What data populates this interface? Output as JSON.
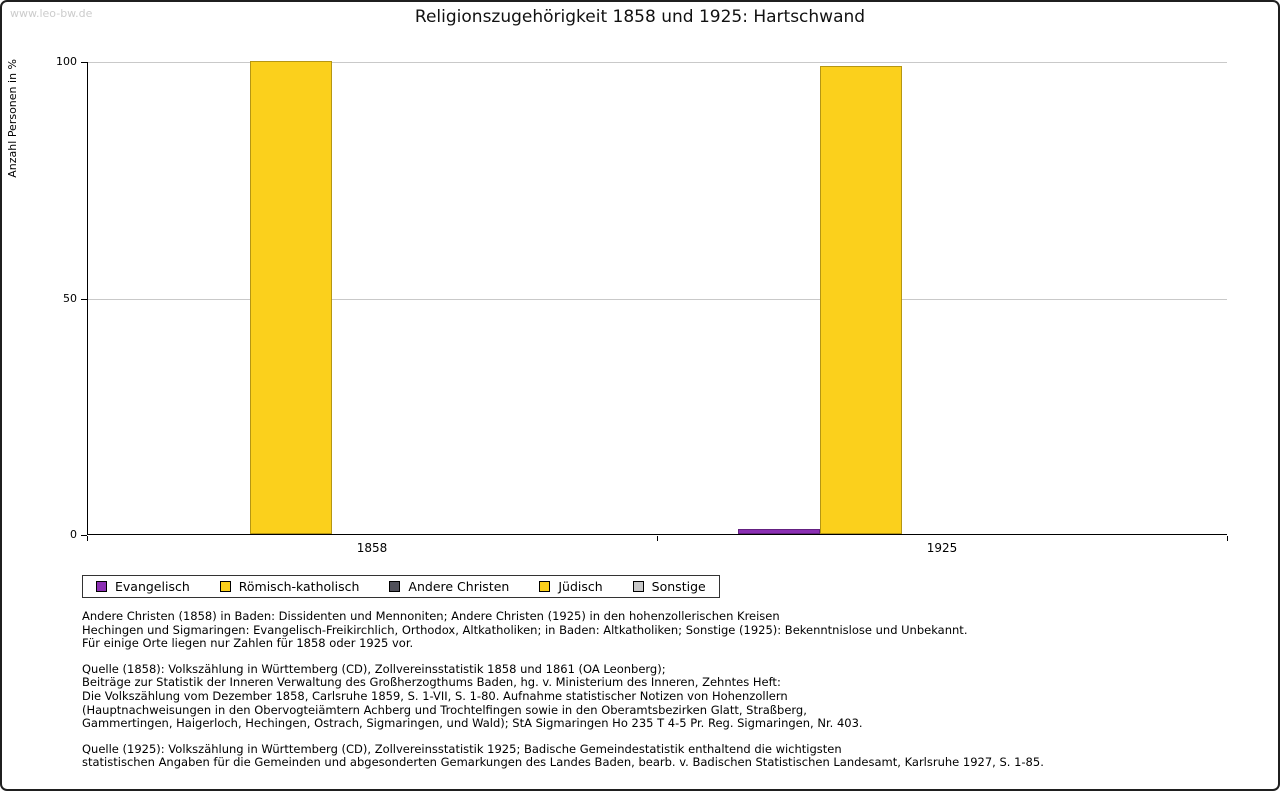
{
  "watermark": "www.leo-bw.de",
  "title": "Religionszugehörigkeit 1858 und 1925: Hartschwand",
  "chart_data": {
    "type": "bar",
    "categories": [
      "1858",
      "1925"
    ],
    "series": [
      {
        "name": "Evangelisch",
        "color": "#8B2FB3",
        "values": [
          0,
          1
        ]
      },
      {
        "name": "Römisch-katholisch",
        "color": "#FBD01C",
        "values": [
          100,
          99
        ]
      },
      {
        "name": "Andere Christen",
        "color": "#50505A",
        "values": [
          0,
          0
        ]
      },
      {
        "name": "Jüdisch",
        "color": "#FBD01C",
        "values": [
          0,
          0
        ]
      },
      {
        "name": "Sonstige",
        "color": "#C8C8C8",
        "values": [
          0,
          0
        ]
      }
    ],
    "title": "Religionszugehörigkeit 1858 und 1925: Hartschwand",
    "xlabel": "",
    "ylabel": "Anzahl Personen in %",
    "ylim": [
      0,
      100
    ],
    "yticks": [
      0,
      50,
      100
    ],
    "grid": "horizontal",
    "legend_position": "bottom"
  },
  "notes": {
    "definitions": "Andere Christen (1858) in Baden: Dissidenten und Mennoniten; Andere Christen (1925) in den hohenzollerischen Kreisen\nHechingen und Sigmaringen: Evangelisch-Freikirchlich, Orthodox, Altkatholiken; in Baden: Altkatholiken; Sonstige (1925): Bekenntnislose und Unbekannt.\nFür einige Orte liegen nur Zahlen für 1858 oder 1925 vor.",
    "source_1858": "Quelle (1858): Volkszählung in Württemberg (CD), Zollvereinsstatistik 1858 und 1861 (OA Leonberg);\nBeiträge zur Statistik der Inneren Verwaltung des Großherzogthums Baden, hg. v. Ministerium des Inneren, Zehntes Heft:\nDie Volkszählung vom Dezember 1858, Carlsruhe 1859, S. 1-VII, S. 1-80. Aufnahme statistischer Notizen von Hohenzollern\n(Hauptnachweisungen in den Obervogteiämtern Achberg und Trochtelfingen sowie in den Oberamtsbezirken Glatt, Straßberg,\nGammertingen, Haigerloch, Hechingen, Ostrach, Sigmaringen, und Wald); StA Sigmaringen Ho 235 T 4-5 Pr. Reg. Sigmaringen, Nr. 403.",
    "source_1925": "Quelle (1925): Volkszählung in Württemberg (CD), Zollvereinsstatistik 1925; Badische Gemeindestatistik enthaltend die wichtigsten\nstatistischen Angaben für die Gemeinden und abgesonderten Gemarkungen des Landes Baden, bearb. v. Badischen Statistischen Landesamt, Karlsruhe 1927, S. 1-85."
  }
}
